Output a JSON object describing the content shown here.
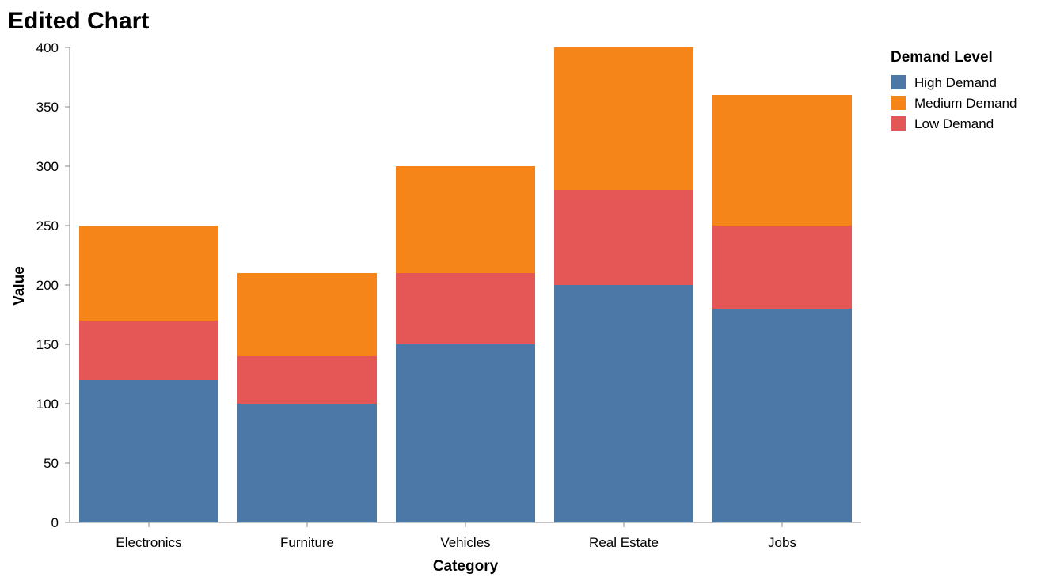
{
  "chart_data": {
    "type": "bar",
    "stacked": true,
    "title": "Edited Chart",
    "xlabel": "Category",
    "ylabel": "Value",
    "ylim": [
      0,
      400
    ],
    "yticks": [
      0,
      50,
      100,
      150,
      200,
      250,
      300,
      350,
      400
    ],
    "categories": [
      "Electronics",
      "Furniture",
      "Vehicles",
      "Real Estate",
      "Jobs"
    ],
    "series": [
      {
        "name": "High Demand",
        "color": "#4c78a8",
        "values": [
          120,
          100,
          150,
          200,
          180
        ]
      },
      {
        "name": "Low Demand",
        "color": "#e45756",
        "values": [
          50,
          40,
          60,
          80,
          70
        ]
      },
      {
        "name": "Medium Demand",
        "color": "#f58518",
        "values": [
          80,
          70,
          90,
          120,
          110
        ]
      }
    ],
    "legend": {
      "title": "Demand Level",
      "position": "top-right",
      "items": [
        {
          "label": "High Demand",
          "color": "#4c78a8"
        },
        {
          "label": "Medium Demand",
          "color": "#f58518"
        },
        {
          "label": "Low Demand",
          "color": "#e45756"
        }
      ]
    },
    "grid": false
  }
}
